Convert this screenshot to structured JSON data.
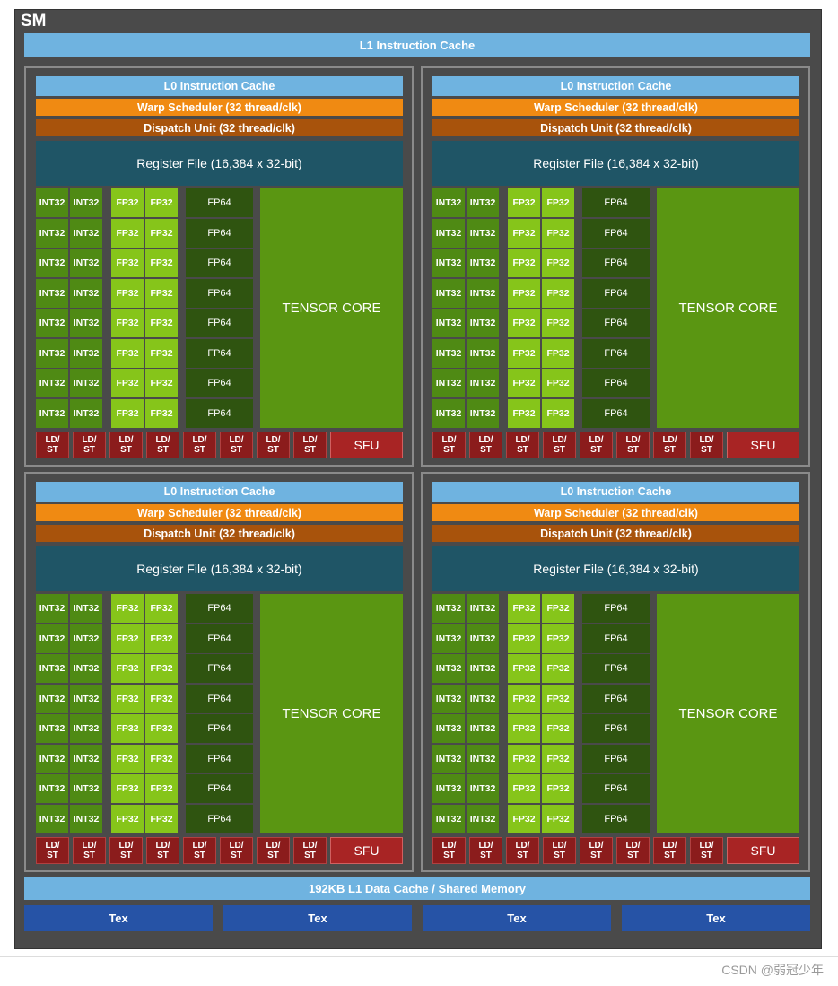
{
  "sm": {
    "label": "SM",
    "l1_instruction_cache": "L1 Instruction Cache",
    "l1_data_cache": "192KB L1 Data Cache / Shared Memory",
    "tex_units": [
      "Tex",
      "Tex",
      "Tex",
      "Tex"
    ]
  },
  "partition": {
    "l0_cache": "L0 Instruction Cache",
    "warp_scheduler": "Warp Scheduler (32 thread/clk)",
    "dispatch_unit": "Dispatch Unit (32 thread/clk)",
    "register_file": "Register File (16,384 x 32-bit)",
    "int32": "INT32",
    "fp32": "FP32",
    "fp64": "FP64",
    "tensor_core": "TENSOR CORE",
    "ldst_line1": "LD/",
    "ldst_line2": "ST",
    "sfu": "SFU"
  },
  "counts": {
    "partitions": 4,
    "rows": 8,
    "ldst_units": 8
  },
  "colors": {
    "sm_background": "#4a4a4a",
    "cache": "#6fb3e0",
    "warp_scheduler": "#f08a12",
    "dispatch_unit": "#a8530c",
    "register_file": "#1f5566",
    "int32": "#4f8a14",
    "fp32": "#86c51a",
    "fp64": "#2f5410",
    "tensor_core": "#5a9612",
    "ldst": "#8b1c1c",
    "sfu": "#a82424",
    "tex": "#2653a6"
  },
  "watermark": "CSDN @弱冠少年"
}
